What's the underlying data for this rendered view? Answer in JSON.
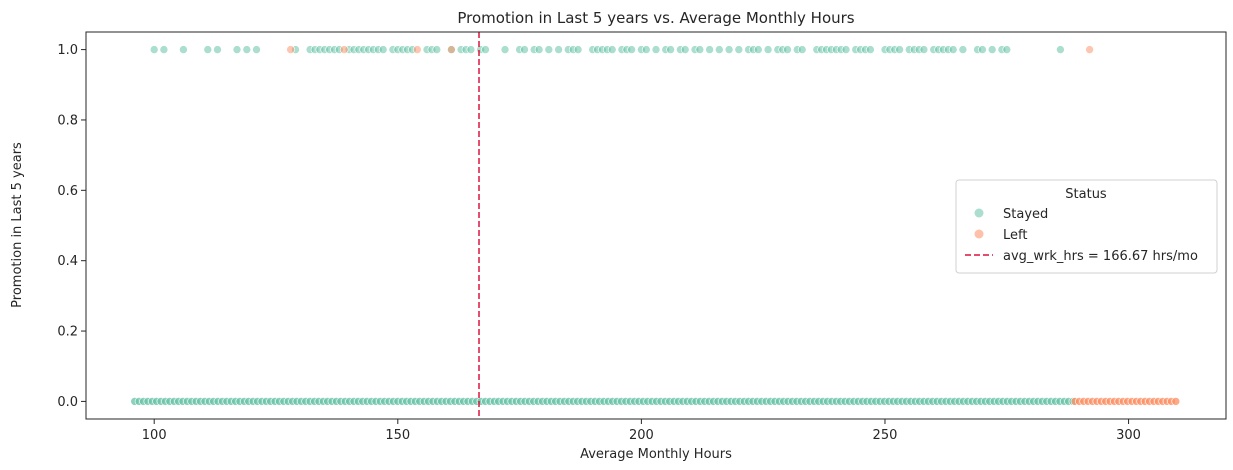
{
  "chart_data": {
    "type": "scatter",
    "title": "Promotion in Last 5 years vs. Average Monthly Hours",
    "xlabel": "Average Monthly Hours",
    "ylabel": "Promotion in Last 5 years",
    "xlim": [
      86,
      320
    ],
    "ylim": [
      -0.05,
      1.05
    ],
    "xticks": [
      100,
      150,
      200,
      250,
      300
    ],
    "yticks": [
      0.0,
      0.2,
      0.4,
      0.6,
      0.8,
      1.0
    ],
    "xtick_labels": [
      "100",
      "150",
      "200",
      "250",
      "300"
    ],
    "ytick_labels": [
      "0.0",
      "0.2",
      "0.4",
      "0.6",
      "0.8",
      "1.0"
    ],
    "grid": false,
    "legend": {
      "title": "Status",
      "placement": "center-right",
      "line_label": "avg_wrk_hrs = 166.67 hrs/mo"
    },
    "reference_line": {
      "orientation": "vertical",
      "x": 166.67,
      "style": "dashed",
      "color": "#dc143c"
    },
    "series": [
      {
        "name": "Stayed",
        "color": "#66c2a5",
        "points_y1": [
          100,
          102,
          106,
          111,
          113,
          117,
          119,
          121,
          129,
          132,
          133,
          134,
          135,
          136,
          137,
          138,
          140,
          141,
          142,
          143,
          144,
          145,
          146,
          147,
          149,
          150,
          151,
          152,
          153,
          156,
          157,
          158,
          161,
          163,
          164,
          165,
          167,
          168,
          172,
          175,
          176,
          178,
          179,
          181,
          183,
          185,
          186,
          187,
          190,
          191,
          192,
          193,
          194,
          196,
          197,
          198,
          200,
          201,
          203,
          205,
          206,
          208,
          209,
          211,
          212,
          214,
          216,
          218,
          220,
          222,
          223,
          224,
          226,
          228,
          229,
          230,
          232,
          233,
          236,
          237,
          238,
          239,
          240,
          241,
          242,
          244,
          245,
          246,
          247,
          250,
          251,
          252,
          253,
          255,
          256,
          257,
          258,
          260,
          261,
          262,
          263,
          264,
          266,
          269,
          270,
          272,
          274,
          275,
          286
        ],
        "band_y0": [
          96,
          289
        ]
      },
      {
        "name": "Left",
        "color": "#fc8d62",
        "points_y1": [
          128,
          139,
          154,
          161,
          292
        ],
        "band_y0": [
          289,
          310
        ]
      }
    ]
  }
}
